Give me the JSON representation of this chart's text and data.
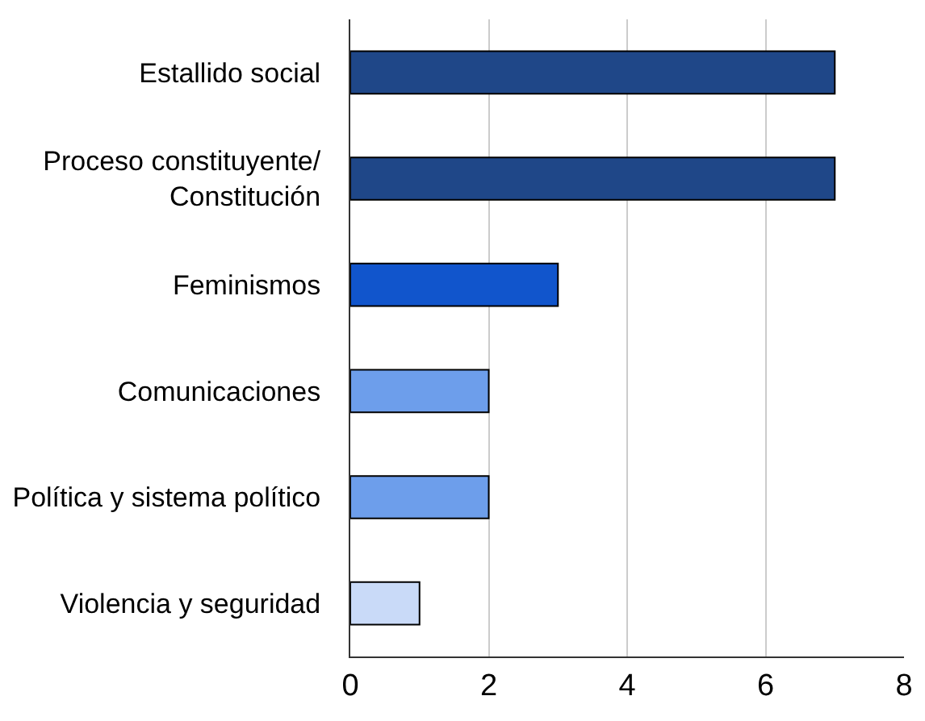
{
  "chart_data": {
    "type": "bar",
    "orientation": "horizontal",
    "categories": [
      "Estallido social",
      "Proceso constituyente/\nConstitución",
      "Feminismos",
      "Comunicaciones",
      "Política y sistema político",
      "Violencia y seguridad"
    ],
    "values": [
      7,
      7,
      3,
      2,
      2,
      1
    ],
    "colors": [
      "#1f4788",
      "#1f4788",
      "#1155cc",
      "#6d9eeb",
      "#6d9eeb",
      "#c9daf8"
    ],
    "xlim": [
      0,
      8
    ],
    "xticks": [
      0,
      2,
      4,
      6,
      8
    ],
    "grid": "x"
  }
}
